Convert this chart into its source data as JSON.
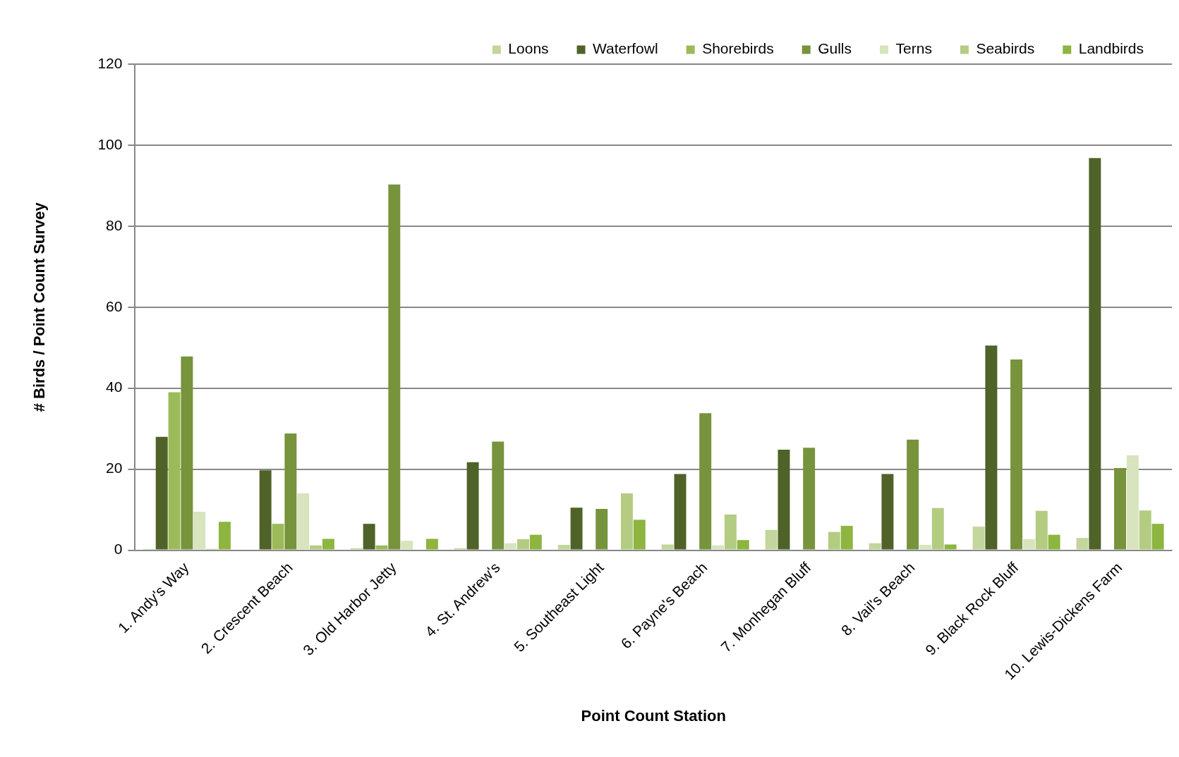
{
  "chart_data": {
    "type": "bar",
    "xlabel": "Point Count Station",
    "ylabel": "# Birds / Point Count Survey",
    "categories": [
      "1. Andy's Way",
      "2. Crescent Beach",
      "3. Old Harbor Jetty",
      "4. St. Andrew's",
      "5. Southeast Light",
      "6. Payne's Beach",
      "7. Monhegan Bluff",
      "8. Vail's Beach",
      "9. Black Rock Bluff",
      "10. Lewis-Dickens Farm"
    ],
    "series": [
      {
        "name": "Loons",
        "color": "#c3d69b",
        "values": [
          0.3,
          null,
          0.5,
          0.5,
          1.3,
          1.4,
          5,
          1.7,
          5.8,
          3
        ]
      },
      {
        "name": "Waterfowl",
        "color": "#4f6228",
        "values": [
          28,
          19.7,
          6.5,
          21.7,
          10.5,
          18.8,
          24.8,
          18.8,
          50.5,
          96.8
        ]
      },
      {
        "name": "Shorebirds",
        "color": "#9bbb59",
        "values": [
          39,
          6.5,
          1.2,
          0,
          0,
          0,
          0,
          0,
          0,
          null
        ]
      },
      {
        "name": "Gulls",
        "color": "#77933c",
        "values": [
          47.8,
          28.8,
          90.3,
          26.8,
          10.2,
          33.8,
          25.3,
          27.3,
          47.1,
          20.3
        ]
      },
      {
        "name": "Terns",
        "color": "#d7e4bd",
        "values": [
          9.5,
          14,
          2.3,
          1.7,
          0,
          1.2,
          0,
          1.3,
          2.7,
          23.4
        ]
      },
      {
        "name": "Seabirds",
        "color": "#b3cc82",
        "values": [
          0.3,
          1.2,
          0,
          2.7,
          14,
          8.8,
          4.5,
          10.4,
          9.7,
          9.8
        ]
      },
      {
        "name": "Landbirds",
        "color": "#8db53f",
        "values": [
          7,
          2.8,
          2.8,
          3.8,
          7.5,
          2.5,
          6,
          1.4,
          3.8,
          6.5
        ]
      }
    ],
    "ylim": [
      0,
      120
    ],
    "yticks": [
      0,
      20,
      40,
      60,
      80,
      100,
      120
    ],
    "grid": "y",
    "legend": "top right"
  }
}
